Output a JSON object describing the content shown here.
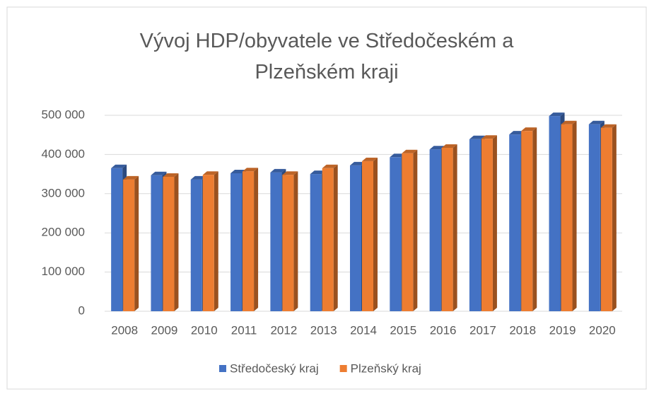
{
  "chart_data": {
    "type": "bar3d",
    "title": "Vývoj HDP/obyvatele ve Středočeském a Plzeňském kraji",
    "categories": [
      "2008",
      "2009",
      "2010",
      "2011",
      "2012",
      "2013",
      "2014",
      "2015",
      "2016",
      "2017",
      "2018",
      "2019",
      "2020"
    ],
    "series": [
      {
        "name": "Středočeský kraj",
        "color": "#4472c4",
        "values": [
          365000,
          347000,
          336000,
          352000,
          354000,
          350000,
          372000,
          393000,
          413000,
          439000,
          451000,
          498000,
          477000
        ]
      },
      {
        "name": "Plzeňský kraj",
        "color": "#ed7d31",
        "values": [
          336000,
          343000,
          348000,
          357000,
          348000,
          365000,
          383000,
          403000,
          417000,
          440000,
          460000,
          477000,
          468000
        ]
      }
    ],
    "ylim": [
      0,
      500000
    ],
    "yticks": [
      {
        "value": 0,
        "label": "0"
      },
      {
        "value": 100000,
        "label": "100 000"
      },
      {
        "value": 200000,
        "label": "200 000"
      },
      {
        "value": 300000,
        "label": "300 000"
      },
      {
        "value": 400000,
        "label": "400 000"
      },
      {
        "value": 500000,
        "label": "500 000"
      }
    ],
    "grid": true,
    "legend": "bottom"
  }
}
